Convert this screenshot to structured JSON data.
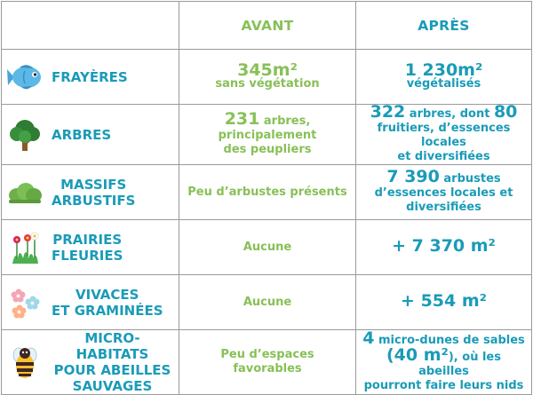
{
  "headers": {
    "avant": "AVANT",
    "apres": "APRÈS"
  },
  "rows": [
    {
      "icon": "fish-icon",
      "label": [
        "FRAYÈRES"
      ],
      "avant": {
        "lines": [
          [
            "345m²",
            "",
            ""
          ],
          [
            "sans végétation",
            "",
            ""
          ]
        ]
      },
      "apres": {
        "lines": [
          [
            "1 230m²"
          ],
          [
            "végétalisés"
          ]
        ]
      }
    },
    {
      "icon": "tree-icon",
      "label": [
        "ARBRES"
      ],
      "avant": {
        "bold": "231",
        "rest": " arbres,",
        "lines": [
          "principalement",
          "des peupliers"
        ]
      },
      "apres": {
        "bold1": "322",
        "mid": " arbres, dont ",
        "bold2": "80",
        "lines": [
          "fruitiers, d’essences locales",
          "et diversifiées"
        ]
      }
    },
    {
      "icon": "shrub-icon",
      "label": [
        "MASSIFS",
        "ARBUSTIFS"
      ],
      "avant": {
        "text": "Peu d’arbustes présents"
      },
      "apres": {
        "bold": "7 390",
        "rest": " arbustes",
        "lines": [
          "d’essences locales et",
          "diversifiées"
        ]
      }
    },
    {
      "icon": "flowers-icon",
      "label": [
        "PRAIRIES",
        "FLEURIES"
      ],
      "avant": {
        "text": "Aucune"
      },
      "apres": {
        "text": "+ 7 370 m²"
      }
    },
    {
      "icon": "pastel-flowers-icon",
      "label": [
        "VIVACES",
        "ET GRAMINÉES"
      ],
      "avant": {
        "text": "Aucune"
      },
      "apres": {
        "text": "+ 554 m²"
      }
    },
    {
      "icon": "bee-icon",
      "label": [
        "MICRO-HABITATS",
        "POUR ABEILLES",
        "SAUVAGES"
      ],
      "avant": {
        "text": "Peu d’espaces favorables"
      },
      "apres": {
        "bold1": "4",
        "rest1": " micro-dunes de sables",
        "open": "(",
        "bold2": "40 m²",
        "rest2": "), où les abeilles",
        "line3": "pourront faire leurs nids"
      }
    }
  ],
  "colors": {
    "green": "#88c057",
    "teal": "#1a9bb8",
    "border": "#9a9a9a"
  }
}
